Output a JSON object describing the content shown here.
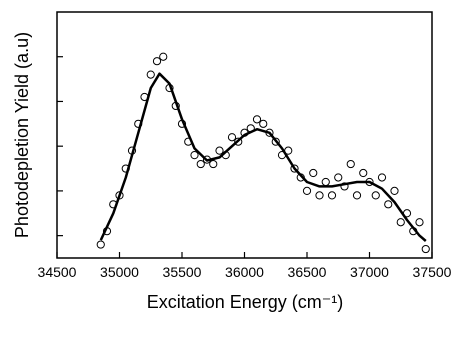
{
  "chart_data": {
    "type": "scatter",
    "x_label": "Excitation Energy (cm⁻¹)",
    "y_label": "Photodepletion Yield (a.u)",
    "xlim": [
      34500,
      37500
    ],
    "xticks": [
      34500,
      35000,
      35500,
      36000,
      36500,
      37000,
      37500
    ],
    "ylim": [
      0.5,
      6
    ],
    "yticks": [
      1,
      2,
      3,
      4,
      5
    ],
    "series": [
      {
        "type": "scatter",
        "color": "#000000",
        "x": [
          34850,
          34900,
          34950,
          35000,
          35050,
          35100,
          35150,
          35200,
          35250,
          35300,
          35350,
          35400,
          35450,
          35500,
          35550,
          35600,
          35650,
          35700,
          35750,
          35800,
          35850,
          35900,
          35950,
          36000,
          36050,
          36100,
          36150,
          36200,
          36250,
          36300,
          36350,
          36400,
          36450,
          36500,
          36550,
          36600,
          36650,
          36700,
          36750,
          36800,
          36850,
          36900,
          36950,
          37000,
          37050,
          37100,
          37150,
          37200,
          37250,
          37300,
          37350,
          37400,
          37450
        ],
        "values": [
          0.8,
          1.1,
          1.7,
          1.9,
          2.5,
          2.9,
          3.5,
          4.1,
          4.6,
          4.9,
          5.0,
          4.3,
          3.9,
          3.5,
          3.1,
          2.8,
          2.6,
          2.7,
          2.6,
          2.9,
          2.8,
          3.2,
          3.1,
          3.3,
          3.4,
          3.6,
          3.5,
          3.3,
          3.1,
          2.8,
          2.9,
          2.5,
          2.3,
          2.0,
          2.4,
          1.9,
          2.2,
          1.9,
          2.3,
          2.1,
          2.6,
          1.9,
          2.4,
          2.2,
          1.9,
          2.3,
          1.7,
          2.0,
          1.3,
          1.5,
          1.1,
          1.3,
          0.7
        ]
      },
      {
        "type": "line",
        "color": "#000000",
        "x": [
          34850,
          34950,
          35050,
          35150,
          35250,
          35320,
          35400,
          35500,
          35600,
          35700,
          35800,
          35900,
          36000,
          36100,
          36200,
          36300,
          36400,
          36500,
          36600,
          36700,
          36800,
          36900,
          37000,
          37100,
          37200,
          37300,
          37400,
          37450
        ],
        "values": [
          0.9,
          1.5,
          2.3,
          3.3,
          4.3,
          4.62,
          4.4,
          3.6,
          2.95,
          2.68,
          2.75,
          3.0,
          3.25,
          3.38,
          3.3,
          2.95,
          2.5,
          2.2,
          2.1,
          2.1,
          2.15,
          2.2,
          2.2,
          2.05,
          1.75,
          1.35,
          1.0,
          0.88
        ]
      }
    ]
  }
}
